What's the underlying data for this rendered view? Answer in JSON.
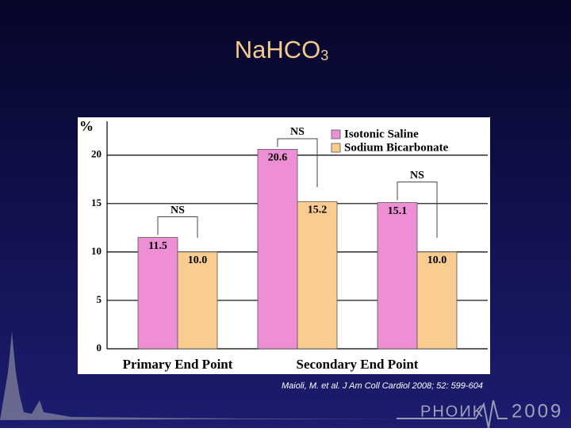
{
  "title": "NaHCO",
  "title_subscript": "3",
  "chart_data": {
    "type": "bar",
    "y_label": "%",
    "categories": [
      null,
      null,
      null
    ],
    "group_labels": [
      "Primary End Point",
      "Secondary End Point"
    ],
    "series": [
      {
        "name": "Isotonic Saline",
        "color": "#ee8fd6",
        "values": [
          11.5,
          20.6,
          15.1
        ]
      },
      {
        "name": "Sodium Bicarbonate",
        "color": "#f9cc90",
        "values": [
          10.0,
          15.2,
          10.0
        ],
        "value_labels": [
          "10.0",
          "15.2",
          "10.0"
        ]
      }
    ],
    "annotations": [
      "NS",
      "NS",
      "NS"
    ],
    "ylim": [
      0,
      23.5
    ],
    "yticks": [
      0,
      5,
      10,
      15,
      20
    ],
    "grid": true,
    "legend": "top-right"
  },
  "citation": "Maioli, M. et al. J Am Coll Cardiol 2008; 52: 599-604",
  "logo": "PHOИK",
  "logo_year": "2009"
}
